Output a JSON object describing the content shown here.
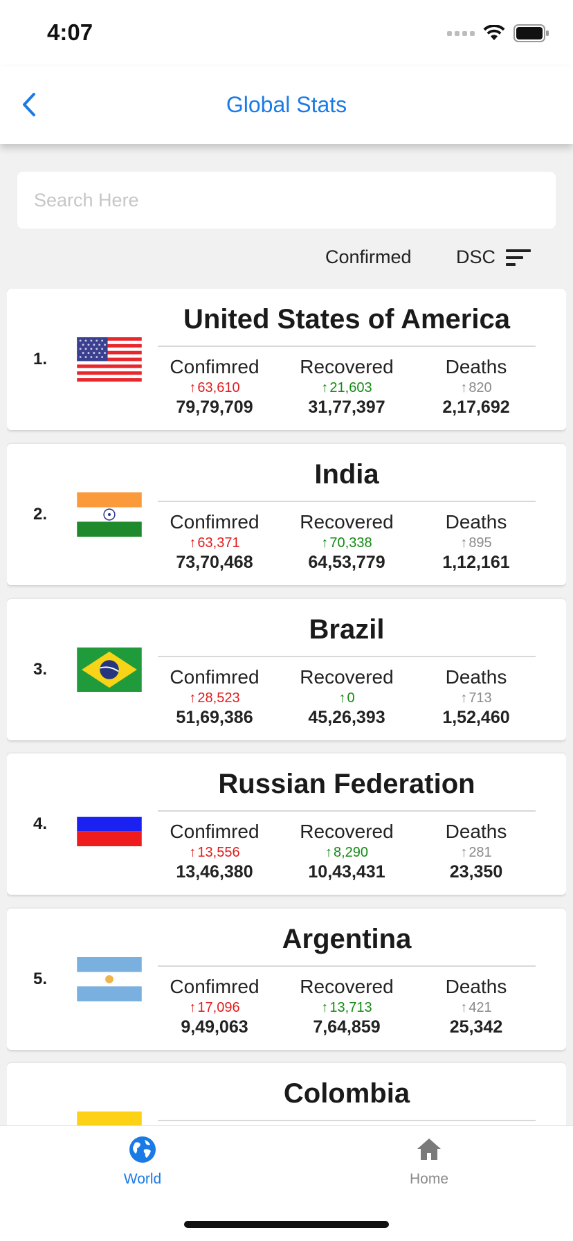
{
  "status_bar": {
    "time": "4:07",
    "signal_icon": "signal-icon",
    "wifi_icon": "wifi-icon",
    "battery_icon": "battery-icon"
  },
  "header": {
    "title": "Global Stats",
    "back_icon": "chevron-left-icon",
    "accent_color": "#1a7be6"
  },
  "search": {
    "placeholder": "Search Here",
    "value": ""
  },
  "sort": {
    "field": "Confirmed",
    "order": "DSC",
    "icon": "sort-icon"
  },
  "labels": {
    "confirmed": "Confimred",
    "recovered": "Recovered",
    "deaths": "Deaths"
  },
  "colors": {
    "confirmed_delta": "#e11c1c",
    "recovered_delta": "#138a13",
    "deaths_delta": "#8a8a8a"
  },
  "countries": [
    {
      "rank": "1.",
      "name": "United States of America",
      "flag": "usa-flag",
      "confirmed_delta": "63,610",
      "confirmed": "79,79,709",
      "recovered_delta": "21,603",
      "recovered": "31,77,397",
      "deaths_delta": "820",
      "deaths": "2,17,692"
    },
    {
      "rank": "2.",
      "name": "India",
      "flag": "india-flag",
      "confirmed_delta": "63,371",
      "confirmed": "73,70,468",
      "recovered_delta": "70,338",
      "recovered": "64,53,779",
      "deaths_delta": "895",
      "deaths": "1,12,161"
    },
    {
      "rank": "3.",
      "name": "Brazil",
      "flag": "brazil-flag",
      "confirmed_delta": "28,523",
      "confirmed": "51,69,386",
      "recovered_delta": "0",
      "recovered": "45,26,393",
      "deaths_delta": "713",
      "deaths": "1,52,460"
    },
    {
      "rank": "4.",
      "name": "Russian Federation",
      "flag": "russia-flag",
      "confirmed_delta": "13,556",
      "confirmed": "13,46,380",
      "recovered_delta": "8,290",
      "recovered": "10,43,431",
      "deaths_delta": "281",
      "deaths": "23,350"
    },
    {
      "rank": "5.",
      "name": "Argentina",
      "flag": "argentina-flag",
      "confirmed_delta": "17,096",
      "confirmed": "9,49,063",
      "recovered_delta": "13,713",
      "recovered": "7,64,859",
      "deaths_delta": "421",
      "deaths": "25,342"
    },
    {
      "rank": "",
      "name": "Colombia",
      "flag": "colombia-flag",
      "confirmed_delta": "",
      "confirmed": "",
      "recovered_delta": "",
      "recovered": "",
      "deaths_delta": "",
      "deaths": ""
    }
  ],
  "tabs": [
    {
      "label": "World",
      "icon": "globe-icon",
      "active": true
    },
    {
      "label": "Home",
      "icon": "home-icon",
      "active": false
    }
  ]
}
